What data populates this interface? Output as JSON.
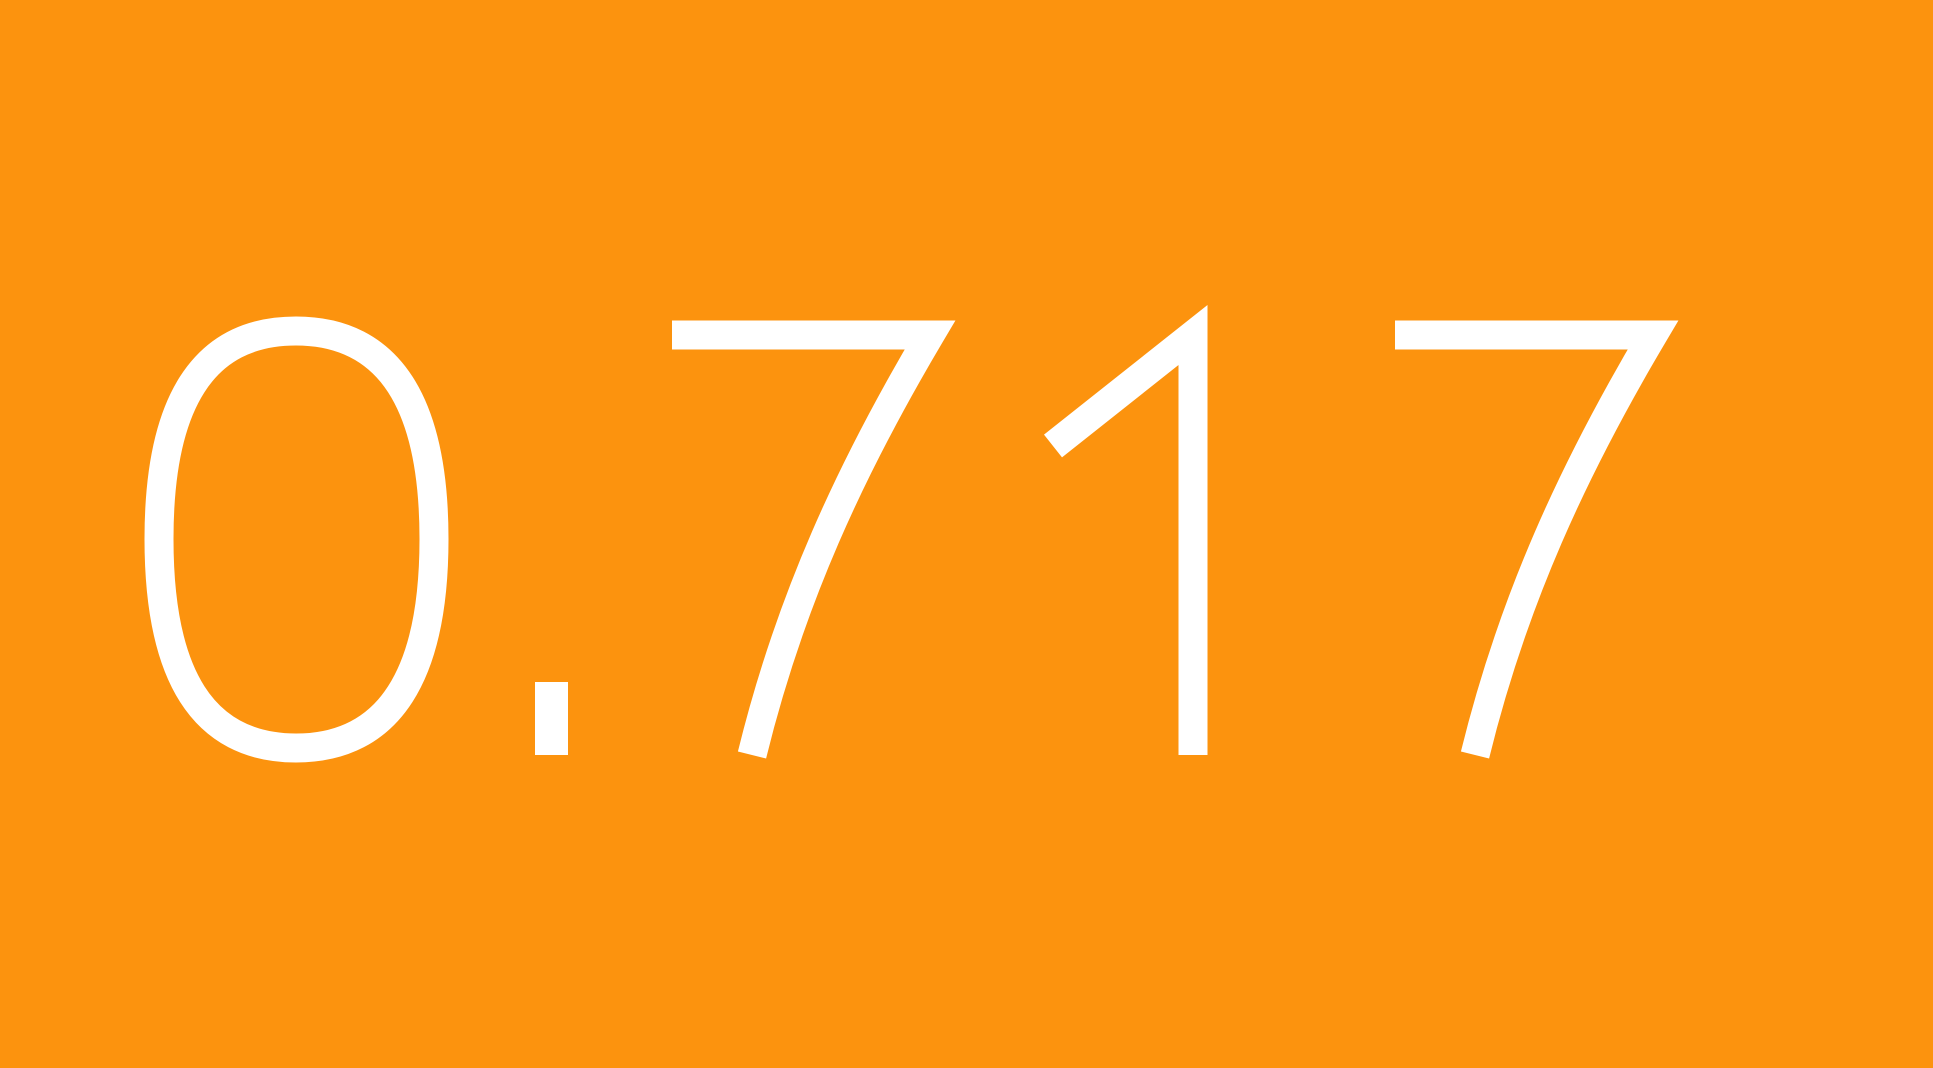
{
  "display": {
    "value": "0.717",
    "background_color": "#FC930E",
    "text_color": "#FFFFFF"
  }
}
